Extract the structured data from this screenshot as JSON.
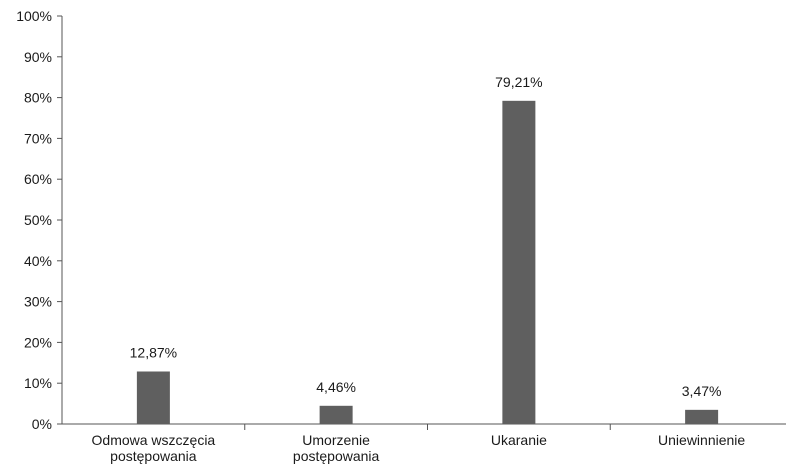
{
  "chart_data": {
    "type": "bar",
    "title": "",
    "xlabel": "",
    "ylabel": "",
    "categories": [
      [
        "Odmowa wszczęcia",
        "postępowania"
      ],
      [
        "Umorzenie",
        "postępowania"
      ],
      [
        "Ukaranie"
      ],
      [
        "Uniewinnienie"
      ]
    ],
    "values": [
      12.87,
      4.46,
      79.21,
      3.47
    ],
    "data_labels": [
      "12,87%",
      "4,46%",
      "79,21%",
      "3,47%"
    ],
    "ylim": [
      0,
      100
    ],
    "yticks": [
      0,
      10,
      20,
      30,
      40,
      50,
      60,
      70,
      80,
      90,
      100
    ],
    "ytick_labels": [
      "0%",
      "10%",
      "20%",
      "30%",
      "40%",
      "50%",
      "60%",
      "70%",
      "80%",
      "90%",
      "100%"
    ],
    "grid": false,
    "legend": "none",
    "bar_color": "#5f5f5f",
    "axis_color": "#555555"
  }
}
